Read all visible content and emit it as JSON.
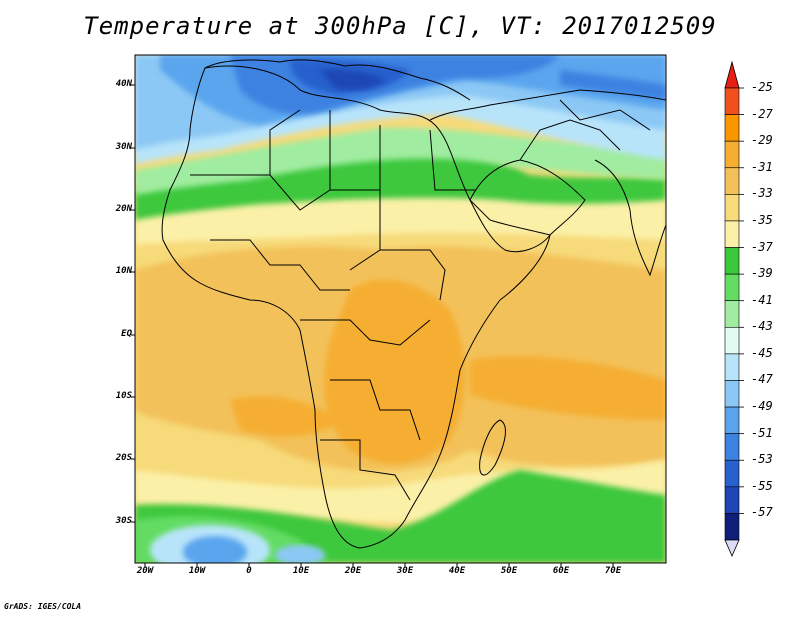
{
  "title": "Temperature at 300hPa [C], VT: 2017012509",
  "credit": "GrADS: IGES/COLA",
  "lat_labels": [
    "40N",
    "30N",
    "20N",
    "10N",
    "EQ",
    "10S",
    "20S",
    "30S"
  ],
  "lon_labels": [
    "20W",
    "10W",
    "0",
    "10E",
    "20E",
    "30E",
    "40E",
    "50E",
    "60E",
    "70E"
  ],
  "colorbar": {
    "labels": [
      "-25",
      "-27",
      "-29",
      "-31",
      "-33",
      "-35",
      "-37",
      "-39",
      "-41",
      "-43",
      "-45",
      "-47",
      "-49",
      "-51",
      "-53",
      "-55",
      "-57"
    ],
    "colors": [
      "#f0501e",
      "#fa9600",
      "#f5ae32",
      "#f3c15a",
      "#f7da7a",
      "#fbf0a8",
      "#3cc83c",
      "#64dc64",
      "#a0eca0",
      "#e2fbf2",
      "#b8e4fa",
      "#8cc8f5",
      "#5aa5ee",
      "#3c82e1",
      "#2860cd",
      "#1e46b4",
      "#0f1e78"
    ],
    "top_color": "#e61e14",
    "bottom_color": "#dcdcf8"
  }
}
